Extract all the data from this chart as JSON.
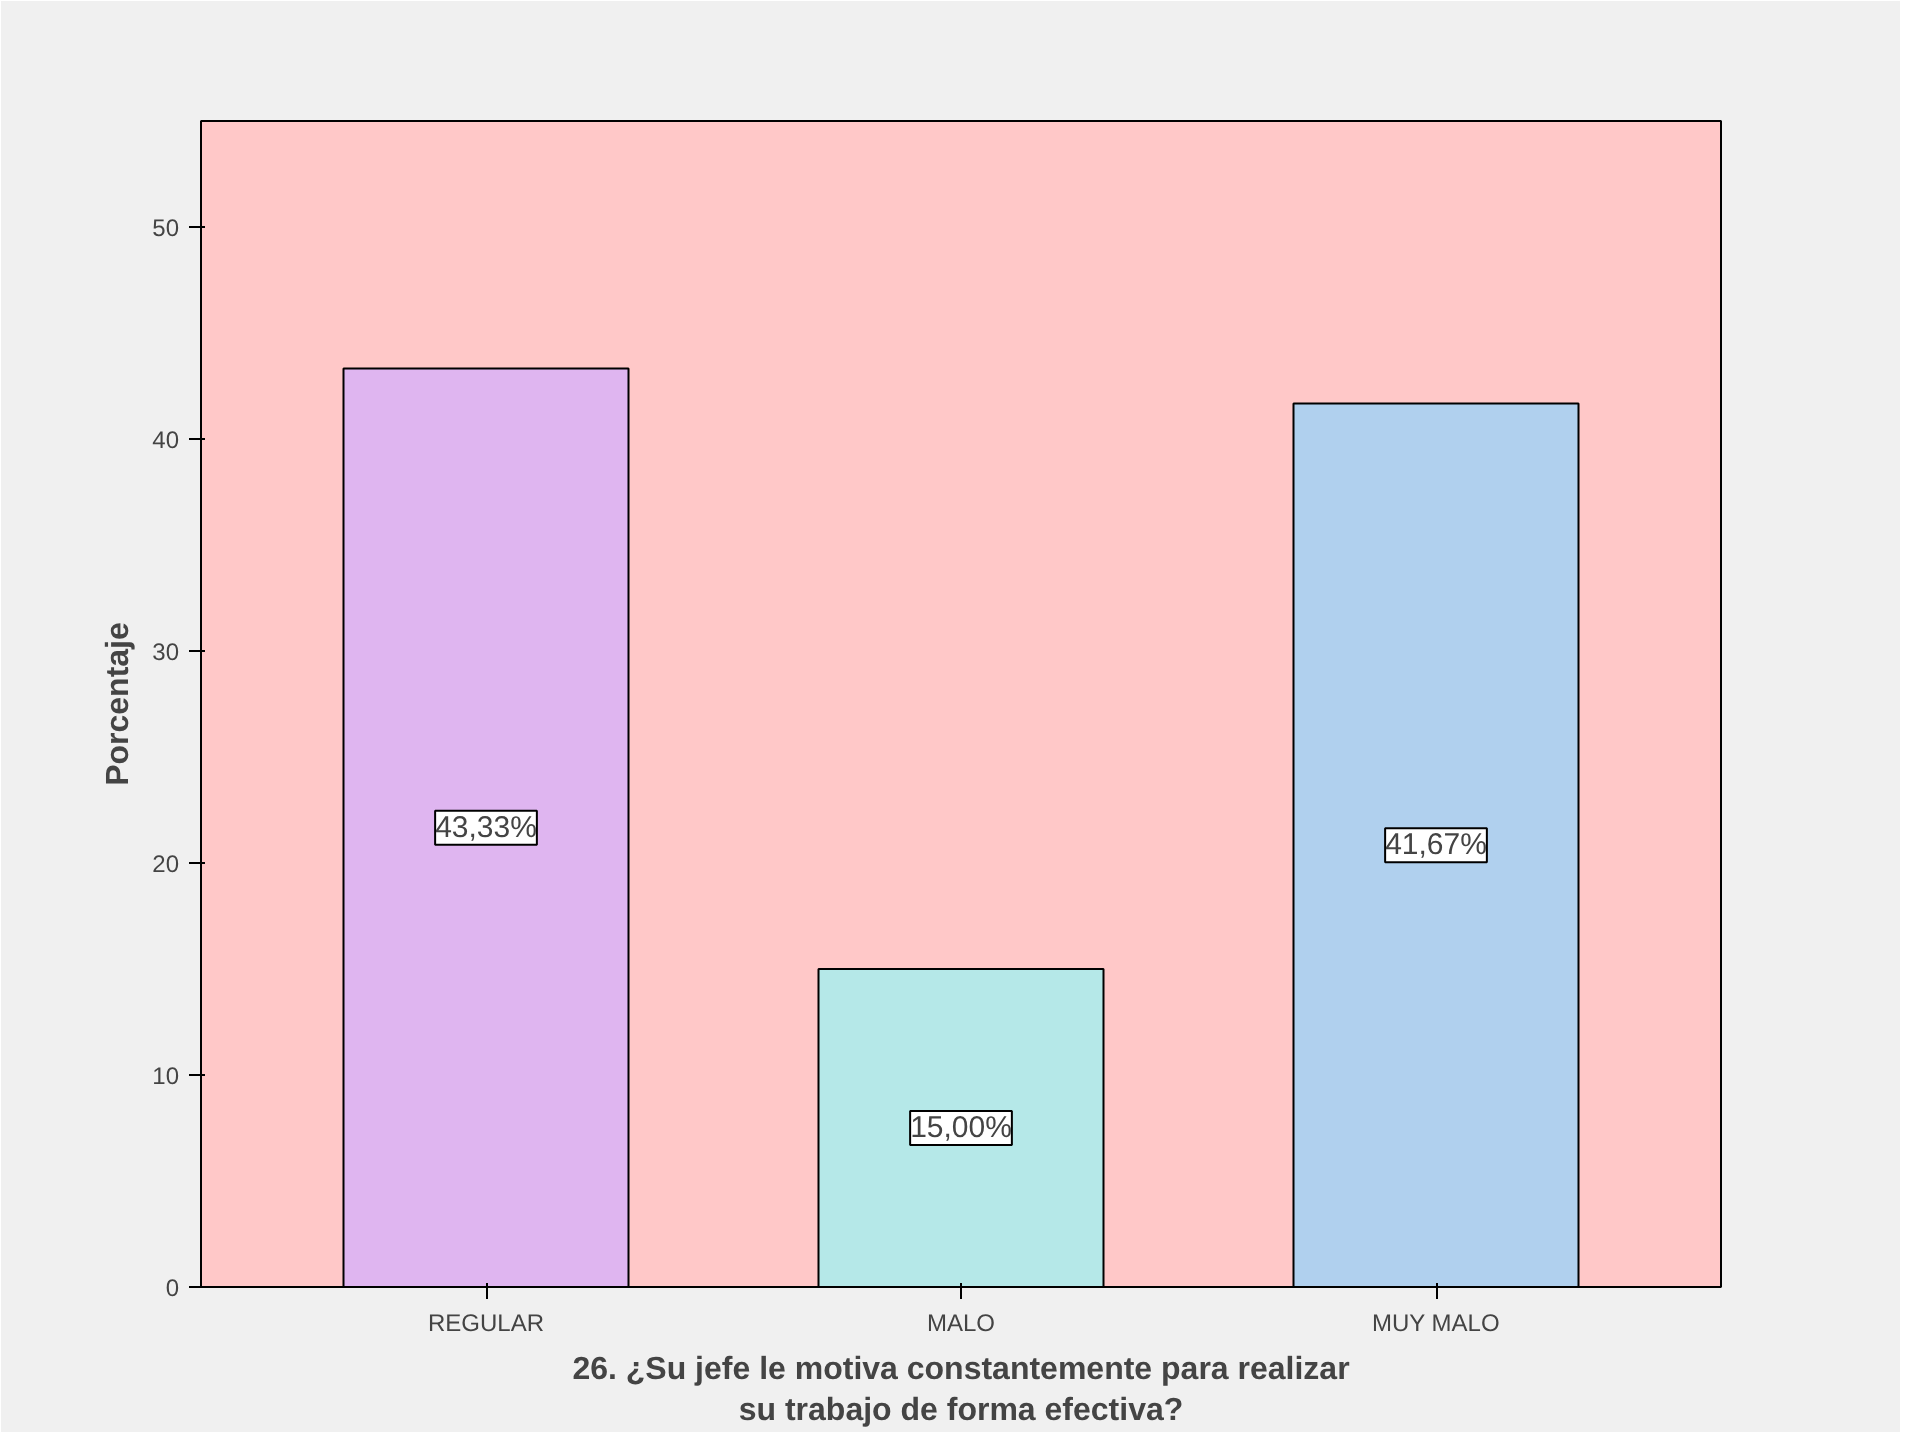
{
  "chart_data": {
    "type": "bar",
    "xlabel": "26. ¿Su jefe le motiva constantemente para realizar\nsu trabajo de forma efectiva?",
    "ylabel": "Porcentaje",
    "categories": [
      "REGULAR",
      "MALO",
      "MUY MALO"
    ],
    "values": [
      43.33,
      15.0,
      41.67
    ],
    "colors": [
      "#dfb5f0",
      "#b5e8e8",
      "#b0d0ee"
    ],
    "value_labels": [
      "43,33%",
      "15,00%",
      "41,67%"
    ],
    "ylim": [
      0,
      55
    ],
    "yticks": [
      0,
      10,
      20,
      30,
      40,
      50
    ],
    "grid": false
  }
}
